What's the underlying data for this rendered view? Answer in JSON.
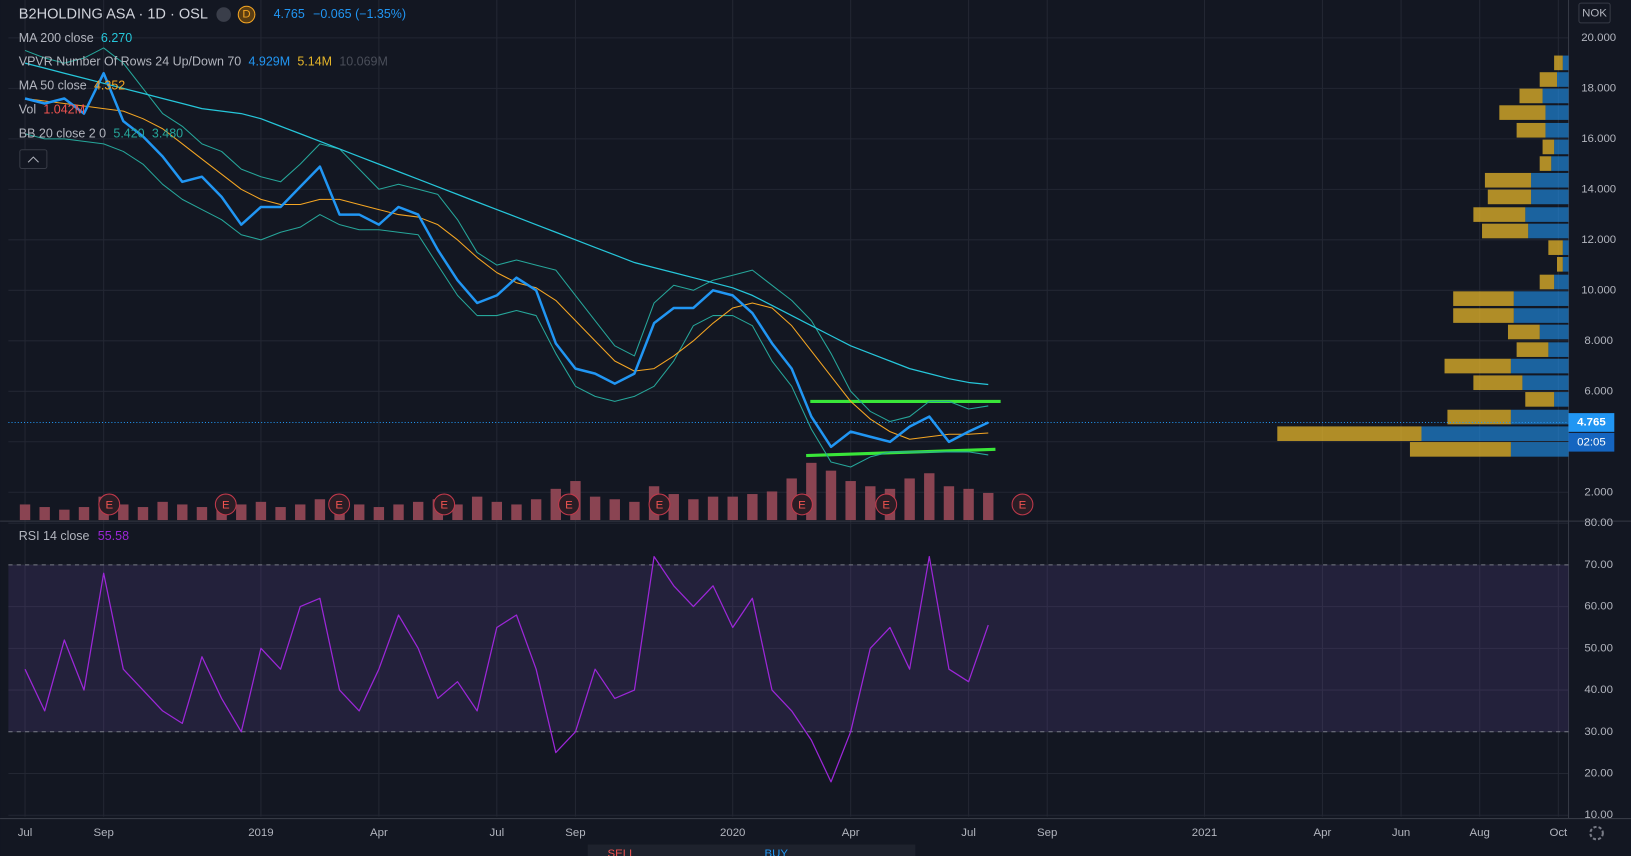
{
  "chart_data": [
    {
      "type": "line",
      "title": "B2HOLDING ASA · 1D · OSL",
      "quote": {
        "badge": "D",
        "change": "−0.065 (−1.35%)"
      },
      "last_price": 4.765,
      "countdown": "02:05",
      "currency": "NOK",
      "earnings_marker": "E",
      "indicators": [
        {
          "label": "MA 200 close",
          "readout": [
            "6.270"
          ],
          "colors": [
            "#26c6da"
          ]
        },
        {
          "label": "VPVR Number Of Rows 24 Up/Down 70",
          "readout": [
            "4.929M",
            "5.14M",
            "10.069M"
          ],
          "colors": [
            "#2196f3",
            "#e5b52a",
            "#4a4e59"
          ]
        },
        {
          "label": "MA 50 close",
          "readout": [
            "4.352"
          ],
          "colors": [
            "#f5a623"
          ]
        },
        {
          "label": "Vol",
          "readout": [
            "1.042M"
          ],
          "colors": [
            "#ef5350"
          ]
        },
        {
          "label": "BB 20 close 2 0",
          "readout": [
            "5.420",
            "3.480"
          ],
          "colors": [
            "#26a69a",
            "#26a69a"
          ]
        }
      ],
      "categories": [
        "Jul",
        null,
        null,
        null,
        "Sep",
        null,
        null,
        null,
        null,
        null,
        null,
        null,
        "2019",
        null,
        null,
        null,
        null,
        null,
        "Apr",
        null,
        null,
        null,
        null,
        null,
        "Jul",
        null,
        null,
        null,
        "Sep",
        null,
        null,
        null,
        null,
        null,
        null,
        null,
        "2020",
        null,
        null,
        null,
        null,
        null,
        "Apr",
        null,
        null,
        null,
        null,
        null,
        "Jul",
        null,
        null,
        null,
        "Sep",
        null,
        null,
        null,
        null,
        null,
        null,
        null,
        "2021",
        null,
        null,
        null,
        null,
        null,
        "Apr",
        null,
        null,
        null,
        "Jun",
        null,
        null,
        null,
        "Aug",
        null,
        null,
        null,
        "Oct"
      ],
      "series": [
        {
          "color": "#26a69a",
          "width": 1,
          "values": [
            19.5,
            19.2,
            19.0,
            19.2,
            19.6,
            19.0,
            18.0,
            17.0,
            16.5,
            15.8,
            15.5,
            14.8,
            14.5,
            14.3,
            15.0,
            15.8,
            15.6,
            14.8,
            14.0,
            14.2,
            14.0,
            13.8,
            12.8,
            11.5,
            11.0,
            11.2,
            11.0,
            10.8,
            9.8,
            8.8,
            7.8,
            7.4,
            9.5,
            10.2,
            10.0,
            10.4,
            10.6,
            10.8,
            10.2,
            9.6,
            8.8,
            7.5,
            6.0,
            5.2,
            4.8,
            5.0,
            5.6,
            5.6,
            5.3,
            5.42,
            null,
            null,
            null,
            null,
            null,
            null,
            null,
            null,
            null,
            null,
            null,
            null,
            null,
            null,
            null,
            null,
            null,
            null,
            null,
            null,
            null,
            null,
            null,
            null,
            null,
            null,
            null,
            null,
            null
          ]
        },
        {
          "color": "#26a69a",
          "width": 1,
          "values": [
            16.2,
            16.0,
            16.0,
            15.9,
            15.8,
            15.5,
            15.0,
            14.2,
            13.6,
            13.2,
            12.8,
            12.2,
            12.0,
            12.3,
            12.5,
            13.0,
            12.6,
            12.4,
            12.4,
            12.3,
            12.2,
            11.0,
            9.8,
            9.0,
            9.0,
            9.2,
            9.0,
            7.5,
            6.2,
            5.8,
            5.6,
            5.8,
            6.2,
            7.2,
            8.6,
            9.0,
            9.0,
            8.6,
            7.2,
            6.2,
            4.5,
            3.2,
            3.0,
            3.4,
            3.6,
            3.6,
            3.6,
            3.6,
            3.6,
            3.48,
            null,
            null,
            null,
            null,
            null,
            null,
            null,
            null,
            null,
            null,
            null,
            null,
            null,
            null,
            null,
            null,
            null,
            null,
            null,
            null,
            null,
            null,
            null,
            null,
            null,
            null,
            null,
            null,
            null
          ]
        },
        {
          "color": "#26c6da",
          "width": 1.2,
          "values": [
            19.0,
            18.8,
            18.6,
            18.4,
            18.2,
            18.0,
            17.8,
            17.6,
            17.4,
            17.2,
            17.1,
            17.0,
            16.8,
            16.5,
            16.2,
            15.9,
            15.6,
            15.3,
            15.0,
            14.7,
            14.4,
            14.1,
            13.8,
            13.5,
            13.2,
            12.9,
            12.6,
            12.3,
            12.0,
            11.7,
            11.4,
            11.1,
            10.9,
            10.7,
            10.5,
            10.3,
            10.1,
            9.8,
            9.4,
            9.0,
            8.6,
            8.2,
            7.8,
            7.5,
            7.2,
            6.9,
            6.7,
            6.5,
            6.35,
            6.27,
            null,
            null,
            null,
            null,
            null,
            null,
            null,
            null,
            null,
            null,
            null,
            null,
            null,
            null,
            null,
            null,
            null,
            null,
            null,
            null,
            null,
            null,
            null,
            null,
            null,
            null,
            null,
            null,
            null
          ]
        },
        {
          "color": "#f5a623",
          "width": 1,
          "values": [
            17.6,
            17.5,
            17.4,
            17.3,
            17.2,
            17.1,
            16.8,
            16.4,
            15.8,
            15.2,
            14.6,
            14.0,
            13.6,
            13.4,
            13.4,
            13.6,
            13.6,
            13.4,
            13.2,
            13.0,
            12.9,
            12.6,
            12.0,
            11.3,
            10.7,
            10.3,
            10.1,
            9.6,
            8.8,
            8.0,
            7.2,
            6.8,
            6.9,
            7.4,
            8.0,
            8.7,
            9.3,
            9.5,
            9.3,
            8.6,
            7.6,
            6.6,
            5.6,
            4.9,
            4.4,
            4.1,
            4.2,
            4.3,
            4.3,
            4.35,
            null,
            null,
            null,
            null,
            null,
            null,
            null,
            null,
            null,
            null,
            null,
            null,
            null,
            null,
            null,
            null,
            null,
            null,
            null,
            null,
            null,
            null,
            null,
            null,
            null,
            null,
            null,
            null,
            null
          ]
        },
        {
          "color": "#2196f3",
          "width": 2.4,
          "values": [
            17.6,
            17.4,
            17.6,
            17.0,
            18.6,
            16.7,
            16.1,
            15.3,
            14.3,
            14.5,
            13.7,
            12.6,
            13.3,
            13.3,
            14.1,
            14.9,
            13.0,
            13.0,
            12.6,
            13.3,
            13.0,
            11.6,
            10.4,
            9.5,
            9.8,
            10.5,
            10.0,
            7.9,
            6.9,
            6.7,
            6.3,
            6.7,
            8.7,
            9.3,
            9.3,
            10.0,
            9.8,
            9.1,
            7.9,
            6.9,
            5.0,
            3.8,
            4.4,
            4.2,
            4.0,
            4.6,
            5.0,
            4.0,
            4.4,
            4.765,
            null,
            null,
            null,
            null,
            null,
            null,
            null,
            null,
            null,
            null,
            null,
            null,
            null,
            null,
            null,
            null,
            null,
            null,
            null,
            null,
            null,
            null,
            null,
            null,
            null,
            null,
            null,
            null,
            null
          ]
        }
      ],
      "volume": {
        "color": "#8a4452",
        "values": [
          0.6,
          0.5,
          0.4,
          0.5,
          0.9,
          0.6,
          0.5,
          0.7,
          0.6,
          0.5,
          0.8,
          0.6,
          0.7,
          0.5,
          0.6,
          0.8,
          0.9,
          0.6,
          0.5,
          0.6,
          0.7,
          0.8,
          0.6,
          0.9,
          0.7,
          0.6,
          0.8,
          1.2,
          1.5,
          0.9,
          0.8,
          0.7,
          1.3,
          1.0,
          0.8,
          0.9,
          0.9,
          1.0,
          1.1,
          1.6,
          2.2,
          1.9,
          1.5,
          1.3,
          1.2,
          1.6,
          1.8,
          1.3,
          1.2,
          1.042,
          null,
          null,
          null,
          null,
          null,
          null,
          null,
          null,
          null,
          null,
          null,
          null,
          null,
          null,
          null,
          null,
          null,
          null,
          null,
          null,
          null,
          null,
          null,
          null,
          null,
          null,
          null,
          null,
          null
        ]
      },
      "vpvr": {
        "up_color": "rgba(33,150,243,0.6)",
        "down_color": "rgba(229,181,42,0.75)",
        "rows": [
          3.7,
          4.32,
          4.98,
          5.68,
          6.34,
          7.0,
          7.65,
          8.35,
          9.0,
          9.67,
          10.33,
          11.03,
          11.69,
          12.35,
          13.0,
          13.7,
          14.36,
          15.02,
          15.68,
          16.34,
          17.04,
          17.7,
          18.35,
          19.01
        ],
        "up": [
          2.0,
          5.1,
          2.0,
          0.5,
          1.6,
          2.0,
          0.7,
          1.0,
          1.9,
          1.9,
          0.5,
          0.2,
          0.2,
          1.4,
          1.5,
          1.3,
          1.3,
          0.6,
          0.5,
          0.8,
          0.8,
          0.9,
          0.4,
          0.2
        ],
        "down": [
          3.5,
          5.0,
          2.2,
          1.0,
          1.7,
          2.3,
          1.1,
          1.1,
          2.1,
          2.1,
          0.5,
          0.2,
          0.5,
          1.6,
          1.8,
          1.5,
          1.6,
          0.4,
          0.4,
          1.0,
          1.6,
          0.8,
          0.6,
          0.3
        ]
      },
      "ylim": [
        0.9,
        21.5
      ],
      "yticks": [
        {
          "value": 2,
          "label": "2.000"
        },
        {
          "value": 4,
          "label": "4.000"
        },
        {
          "value": 6,
          "label": "6.000"
        },
        {
          "value": 8,
          "label": "8.000"
        },
        {
          "value": 10,
          "label": "10.000"
        },
        {
          "value": 12,
          "label": "12.000"
        },
        {
          "value": 14,
          "label": "14.000"
        },
        {
          "value": 16,
          "label": "16.000"
        },
        {
          "value": 18,
          "label": "18.000"
        },
        {
          "value": 20,
          "label": "20.000"
        }
      ],
      "grid": true
    },
    {
      "type": "line",
      "title": "RSI 14 close",
      "series": [
        {
          "color": "#9c27d8",
          "width": 1.2,
          "values": [
            45,
            35,
            52,
            40,
            68,
            45,
            40,
            35,
            32,
            48,
            38,
            30,
            50,
            45,
            60,
            62,
            40,
            35,
            45,
            58,
            50,
            38,
            42,
            35,
            55,
            58,
            45,
            25,
            30,
            45,
            38,
            40,
            72,
            65,
            60,
            65,
            55,
            62,
            40,
            35,
            28,
            18,
            30,
            50,
            55,
            45,
            72,
            45,
            42,
            55.58,
            null,
            null,
            null,
            null,
            null,
            null,
            null,
            null,
            null,
            null,
            null,
            null,
            null,
            null,
            null,
            null,
            null,
            null,
            null,
            null,
            null,
            null,
            null,
            null,
            null,
            null,
            null,
            null,
            null
          ]
        }
      ],
      "bands": [
        30,
        70
      ],
      "band_color": "rgba(126,87,194,0.16)",
      "ylim": [
        9.7,
        80.25
      ],
      "yticks": [
        {
          "value": 10,
          "label": "10.00"
        },
        {
          "value": 20,
          "label": "20.00"
        },
        {
          "value": 30,
          "label": "30.00"
        },
        {
          "value": 40,
          "label": "40.00"
        },
        {
          "value": 50,
          "label": "50.00"
        },
        {
          "value": 60,
          "label": "60.00"
        },
        {
          "value": 70,
          "label": "70.00"
        },
        {
          "value": 80,
          "label": "80.00"
        }
      ],
      "grid": true
    }
  ],
  "toolbar": {
    "sell": "SELL",
    "buy": "BUY"
  }
}
